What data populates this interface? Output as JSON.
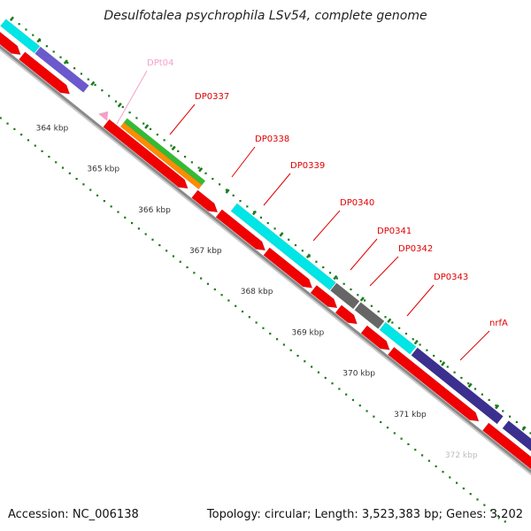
{
  "title": "Desulfotalea psychrophila LSv54, complete genome",
  "accession": "Accession: NC_006138",
  "summary": "Topology: circular; Length: 3,523,383 bp; Genes: 3,202",
  "ticks": [
    "364 kbp",
    "365 kbp",
    "366 kbp",
    "367 kbp",
    "368 kbp",
    "369 kbp",
    "370 kbp",
    "371 kbp",
    "372 kbp"
  ],
  "genes": [
    {
      "label": "DPt04",
      "color": "#f4a0c8"
    },
    {
      "label": "DP0337",
      "color": "#e00000"
    },
    {
      "label": "DP0338",
      "color": "#e00000"
    },
    {
      "label": "DP0339",
      "color": "#e00000"
    },
    {
      "label": "DP0340",
      "color": "#e00000"
    },
    {
      "label": "DP0341",
      "color": "#e00000"
    },
    {
      "label": "DP0342",
      "color": "#e00000"
    },
    {
      "label": "DP0343",
      "color": "#e00000"
    },
    {
      "label": "nrfA",
      "color": "#e00000"
    }
  ],
  "colors": {
    "cds": "#f00000",
    "cyan": "#00e5e5",
    "purple": "#6a5acd",
    "darkblue": "#3b2f8f",
    "green": "#33bb33",
    "orange": "#ff8c00",
    "gray": "#666666",
    "backbone": "#8a8a8a",
    "dots": "#1a7a1a",
    "trna": "#f4a0c8"
  }
}
